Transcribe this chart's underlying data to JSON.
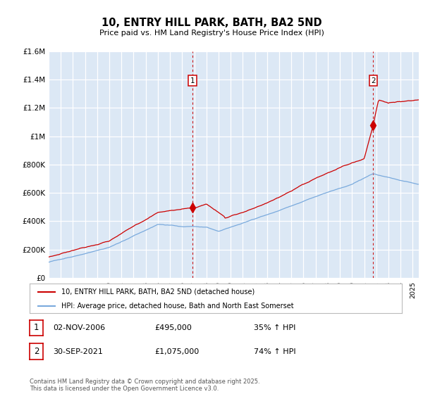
{
  "title": "10, ENTRY HILL PARK, BATH, BA2 5ND",
  "subtitle": "Price paid vs. HM Land Registry's House Price Index (HPI)",
  "ylim": [
    0,
    1600000
  ],
  "yticks": [
    0,
    200000,
    400000,
    600000,
    800000,
    1000000,
    1200000,
    1400000,
    1600000
  ],
  "ytick_labels": [
    "£0",
    "£200K",
    "£400K",
    "£600K",
    "£800K",
    "£1M",
    "£1.2M",
    "£1.4M",
    "£1.6M"
  ],
  "plot_bg_color": "#dce8f5",
  "fig_bg_color": "#ffffff",
  "grid_color": "#ffffff",
  "red_line_color": "#cc0000",
  "blue_line_color": "#7aaadd",
  "purchase1_year": 2006.84,
  "purchase1_price": 495000,
  "purchase2_year": 2021.75,
  "purchase2_price": 1075000,
  "purchase1_date": "02-NOV-2006",
  "purchase1_hpi": "35% ↑ HPI",
  "purchase2_date": "30-SEP-2021",
  "purchase2_hpi": "74% ↑ HPI",
  "legend_line1": "10, ENTRY HILL PARK, BATH, BA2 5ND (detached house)",
  "legend_line2": "HPI: Average price, detached house, Bath and North East Somerset",
  "footnote": "Contains HM Land Registry data © Crown copyright and database right 2025.\nThis data is licensed under the Open Government Licence v3.0.",
  "xstart": 1995.0,
  "xend": 2025.5
}
